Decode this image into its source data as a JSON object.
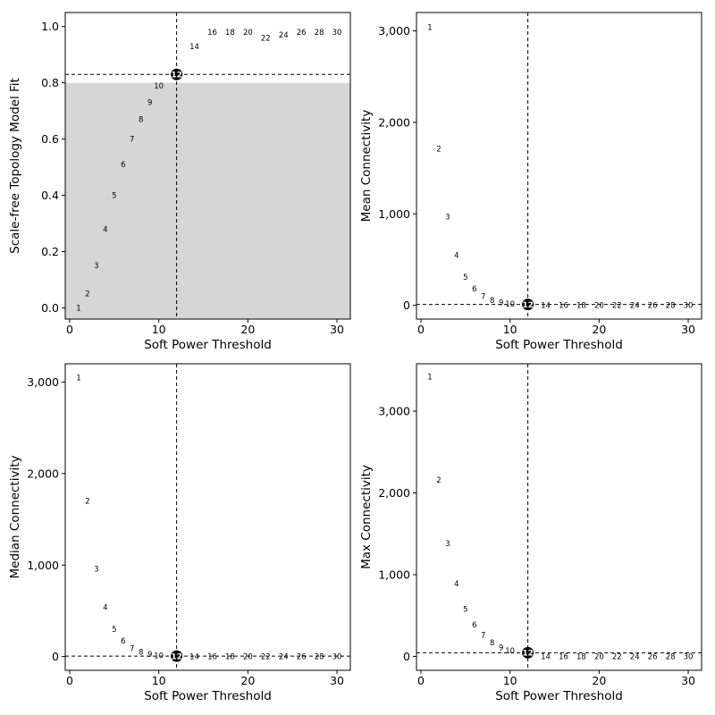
{
  "chart_data": [
    {
      "type": "scatter",
      "xlabel": "Soft Power Threshold",
      "ylabel": "Scale-free Topology Model Fit",
      "xlim": [
        -0.5,
        31.5
      ],
      "ylim": [
        -0.04,
        1.05
      ],
      "xticks": [
        0,
        10,
        20,
        30
      ],
      "xtick_labels": [
        "0",
        "10",
        "20",
        "30"
      ],
      "yticks": [
        0,
        0.2,
        0.4,
        0.6,
        0.8,
        1.0
      ],
      "ytick_labels": [
        "0.0",
        "0.2",
        "0.4",
        "0.6",
        "0.8",
        "1.0"
      ],
      "shaded_region": {
        "y_below": 0.8,
        "color": "#d6d6d6"
      },
      "hline": 0.83,
      "vline": 12,
      "highlight": {
        "x": 12,
        "label": "12"
      },
      "points": [
        {
          "x": 1,
          "y": 0.0,
          "label": "1"
        },
        {
          "x": 2,
          "y": 0.05,
          "label": "2"
        },
        {
          "x": 3,
          "y": 0.15,
          "label": "3"
        },
        {
          "x": 4,
          "y": 0.28,
          "label": "4"
        },
        {
          "x": 5,
          "y": 0.4,
          "label": "5"
        },
        {
          "x": 6,
          "y": 0.51,
          "label": "6"
        },
        {
          "x": 7,
          "y": 0.6,
          "label": "7"
        },
        {
          "x": 8,
          "y": 0.67,
          "label": "8"
        },
        {
          "x": 9,
          "y": 0.73,
          "label": "9"
        },
        {
          "x": 10,
          "y": 0.79,
          "label": "10"
        },
        {
          "x": 12,
          "y": 0.83,
          "label": "12"
        },
        {
          "x": 14,
          "y": 0.93,
          "label": "14"
        },
        {
          "x": 16,
          "y": 0.98,
          "label": "16"
        },
        {
          "x": 18,
          "y": 0.98,
          "label": "18"
        },
        {
          "x": 20,
          "y": 0.98,
          "label": "20"
        },
        {
          "x": 22,
          "y": 0.96,
          "label": "22"
        },
        {
          "x": 24,
          "y": 0.97,
          "label": "24"
        },
        {
          "x": 26,
          "y": 0.98,
          "label": "26"
        },
        {
          "x": 28,
          "y": 0.98,
          "label": "28"
        },
        {
          "x": 30,
          "y": 0.98,
          "label": "30"
        }
      ]
    },
    {
      "type": "scatter",
      "xlabel": "Soft Power Threshold",
      "ylabel": "Mean Connectivity",
      "xlim": [
        -0.5,
        31.5
      ],
      "ylim": [
        -150,
        3200
      ],
      "xticks": [
        0,
        10,
        20,
        30
      ],
      "xtick_labels": [
        "0",
        "10",
        "20",
        "30"
      ],
      "yticks": [
        0,
        1000,
        2000,
        3000
      ],
      "ytick_labels": [
        "0",
        "1,000",
        "2,000",
        "3,000"
      ],
      "hline": 10,
      "vline": 12,
      "highlight": {
        "x": 12,
        "label": "12"
      },
      "points": [
        {
          "x": 1,
          "y": 3040,
          "label": "1"
        },
        {
          "x": 2,
          "y": 1710,
          "label": "2"
        },
        {
          "x": 3,
          "y": 970,
          "label": "3"
        },
        {
          "x": 4,
          "y": 550,
          "label": "4"
        },
        {
          "x": 5,
          "y": 310,
          "label": "5"
        },
        {
          "x": 6,
          "y": 180,
          "label": "6"
        },
        {
          "x": 7,
          "y": 100,
          "label": "7"
        },
        {
          "x": 8,
          "y": 55,
          "label": "8"
        },
        {
          "x": 9,
          "y": 30,
          "label": "9"
        },
        {
          "x": 10,
          "y": 15,
          "label": "10"
        },
        {
          "x": 12,
          "y": 10,
          "label": "12"
        },
        {
          "x": 14,
          "y": 0,
          "label": "14"
        },
        {
          "x": 16,
          "y": 0,
          "label": "16"
        },
        {
          "x": 18,
          "y": 0,
          "label": "18"
        },
        {
          "x": 20,
          "y": 0,
          "label": "20"
        },
        {
          "x": 22,
          "y": 0,
          "label": "22"
        },
        {
          "x": 24,
          "y": 0,
          "label": "24"
        },
        {
          "x": 26,
          "y": 0,
          "label": "26"
        },
        {
          "x": 28,
          "y": 0,
          "label": "28"
        },
        {
          "x": 30,
          "y": 0,
          "label": "30"
        }
      ]
    },
    {
      "type": "scatter",
      "xlabel": "Soft Power Threshold",
      "ylabel": "Median Connectivity",
      "xlim": [
        -0.5,
        31.5
      ],
      "ylim": [
        -150,
        3200
      ],
      "xticks": [
        0,
        10,
        20,
        30
      ],
      "xtick_labels": [
        "0",
        "10",
        "20",
        "30"
      ],
      "yticks": [
        0,
        1000,
        2000,
        3000
      ],
      "ytick_labels": [
        "0",
        "1,000",
        "2,000",
        "3,000"
      ],
      "hline": 5,
      "vline": 12,
      "highlight": {
        "x": 12,
        "label": "12"
      },
      "points": [
        {
          "x": 1,
          "y": 3050,
          "label": "1"
        },
        {
          "x": 2,
          "y": 1700,
          "label": "2"
        },
        {
          "x": 3,
          "y": 960,
          "label": "3"
        },
        {
          "x": 4,
          "y": 540,
          "label": "4"
        },
        {
          "x": 5,
          "y": 300,
          "label": "5"
        },
        {
          "x": 6,
          "y": 170,
          "label": "6"
        },
        {
          "x": 7,
          "y": 90,
          "label": "7"
        },
        {
          "x": 8,
          "y": 50,
          "label": "8"
        },
        {
          "x": 9,
          "y": 25,
          "label": "9"
        },
        {
          "x": 10,
          "y": 12,
          "label": "10"
        },
        {
          "x": 12,
          "y": 5,
          "label": "12"
        },
        {
          "x": 14,
          "y": 0,
          "label": "14"
        },
        {
          "x": 16,
          "y": 0,
          "label": "16"
        },
        {
          "x": 18,
          "y": 0,
          "label": "18"
        },
        {
          "x": 20,
          "y": 0,
          "label": "20"
        },
        {
          "x": 22,
          "y": 0,
          "label": "22"
        },
        {
          "x": 24,
          "y": 0,
          "label": "24"
        },
        {
          "x": 26,
          "y": 0,
          "label": "26"
        },
        {
          "x": 28,
          "y": 0,
          "label": "28"
        },
        {
          "x": 30,
          "y": 0,
          "label": "30"
        }
      ]
    },
    {
      "type": "scatter",
      "xlabel": "Soft Power Threshold",
      "ylabel": "Max Connectivity",
      "xlim": [
        -0.5,
        31.5
      ],
      "ylim": [
        -170,
        3580
      ],
      "xticks": [
        0,
        10,
        20,
        30
      ],
      "xtick_labels": [
        "0",
        "10",
        "20",
        "30"
      ],
      "yticks": [
        0,
        1000,
        2000,
        3000
      ],
      "ytick_labels": [
        "0",
        "1,000",
        "2,000",
        "3,000"
      ],
      "hline": 45,
      "vline": 12,
      "highlight": {
        "x": 12,
        "label": "12"
      },
      "points": [
        {
          "x": 1,
          "y": 3420,
          "label": "1"
        },
        {
          "x": 2,
          "y": 2160,
          "label": "2"
        },
        {
          "x": 3,
          "y": 1380,
          "label": "3"
        },
        {
          "x": 4,
          "y": 890,
          "label": "4"
        },
        {
          "x": 5,
          "y": 580,
          "label": "5"
        },
        {
          "x": 6,
          "y": 390,
          "label": "6"
        },
        {
          "x": 7,
          "y": 260,
          "label": "7"
        },
        {
          "x": 8,
          "y": 170,
          "label": "8"
        },
        {
          "x": 9,
          "y": 110,
          "label": "9"
        },
        {
          "x": 10,
          "y": 70,
          "label": "10"
        },
        {
          "x": 12,
          "y": 45,
          "label": "12"
        },
        {
          "x": 14,
          "y": 0,
          "label": "14"
        },
        {
          "x": 16,
          "y": 0,
          "label": "16"
        },
        {
          "x": 18,
          "y": 0,
          "label": "18"
        },
        {
          "x": 20,
          "y": 0,
          "label": "20"
        },
        {
          "x": 22,
          "y": 0,
          "label": "22"
        },
        {
          "x": 24,
          "y": 0,
          "label": "24"
        },
        {
          "x": 26,
          "y": 0,
          "label": "26"
        },
        {
          "x": 28,
          "y": 0,
          "label": "28"
        },
        {
          "x": 30,
          "y": 0,
          "label": "30"
        }
      ]
    }
  ]
}
